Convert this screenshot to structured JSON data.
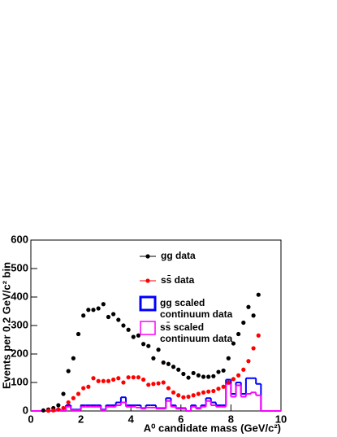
{
  "chart_data": {
    "type": "histogram",
    "xlabel": "A⁰ candidate mass (GeV/c²)",
    "ylabel": "Events per 0.2 GeV/c² bin",
    "xlim": [
      0,
      10
    ],
    "ylim": [
      0,
      600
    ],
    "xticks": [
      0,
      2,
      4,
      6,
      8,
      10
    ],
    "yticks": [
      0,
      100,
      200,
      300,
      400,
      500,
      600
    ],
    "x": [
      0.1,
      0.3,
      0.5,
      0.7,
      0.9,
      1.1,
      1.3,
      1.5,
      1.7,
      1.9,
      2.1,
      2.3,
      2.5,
      2.7,
      2.9,
      3.1,
      3.3,
      3.5,
      3.7,
      3.9,
      4.1,
      4.3,
      4.5,
      4.7,
      4.9,
      5.1,
      5.3,
      5.5,
      5.7,
      5.9,
      6.1,
      6.3,
      6.5,
      6.7,
      6.9,
      7.1,
      7.3,
      7.5,
      7.7,
      7.9,
      8.1,
      8.3,
      8.5,
      8.7,
      8.9,
      9.1,
      9.3,
      9.5,
      9.7,
      9.9
    ],
    "series": [
      {
        "name": "gg data",
        "color": "#000000",
        "style": "points",
        "values": [
          null,
          null,
          2,
          5,
          10,
          20,
          60,
          140,
          185,
          270,
          335,
          355,
          355,
          360,
          375,
          330,
          340,
          320,
          300,
          285,
          260,
          265,
          235,
          228,
          185,
          215,
          170,
          165,
          155,
          145,
          130,
          117,
          133,
          125,
          120,
          120,
          122,
          137,
          142,
          185,
          237,
          270,
          310,
          365,
          335,
          408,
          null,
          null,
          null,
          null
        ]
      },
      {
        "name": "ss̄ data",
        "color": "#ff0000",
        "style": "points",
        "values": [
          null,
          null,
          null,
          1,
          2,
          5,
          10,
          30,
          45,
          60,
          80,
          85,
          115,
          105,
          105,
          105,
          110,
          115,
          100,
          118,
          118,
          118,
          110,
          92,
          95,
          97,
          100,
          80,
          65,
          55,
          48,
          50,
          55,
          60,
          65,
          68,
          70,
          78,
          85,
          100,
          112,
          125,
          145,
          175,
          220,
          265,
          null,
          null,
          null,
          null
        ]
      },
      {
        "name": "gg scaled continuum data",
        "color": "#0000ff",
        "style": "step",
        "values": [
          0,
          0,
          0,
          0,
          0,
          5,
          0,
          20,
          5,
          5,
          20,
          20,
          20,
          20,
          5,
          20,
          20,
          30,
          48,
          20,
          20,
          20,
          10,
          20,
          20,
          10,
          10,
          45,
          20,
          10,
          10,
          0,
          20,
          10,
          20,
          45,
          30,
          20,
          20,
          110,
          60,
          100,
          60,
          115,
          115,
          95,
          0,
          0,
          0,
          0
        ]
      },
      {
        "name": "ss̄ scaled continuum data",
        "color": "#ff00ff",
        "style": "step",
        "values": [
          0,
          0,
          0,
          0,
          0,
          3,
          0,
          15,
          3,
          3,
          15,
          15,
          15,
          15,
          3,
          15,
          15,
          20,
          30,
          15,
          15,
          12,
          8,
          12,
          12,
          8,
          8,
          35,
          15,
          8,
          8,
          0,
          15,
          8,
          15,
          35,
          20,
          15,
          15,
          95,
          50,
          90,
          50,
          60,
          65,
          55,
          0,
          0,
          0,
          0
        ]
      }
    ]
  }
}
